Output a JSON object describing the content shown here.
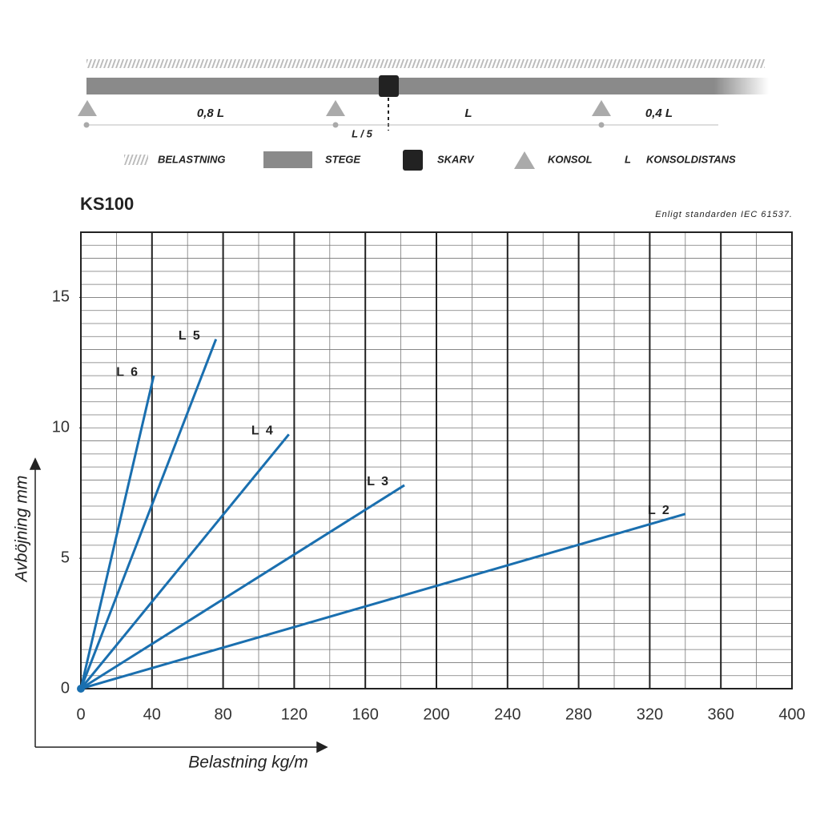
{
  "diagram": {
    "spans": [
      "0,8 L",
      "L",
      "0,4 L"
    ],
    "joint_label": "L / 5",
    "legend": [
      "BELASTNING",
      "STEGE",
      "SKARV",
      "KONSOL",
      "L",
      "KONSOLDISTANS"
    ]
  },
  "chart_data": {
    "type": "line",
    "title": "KS100",
    "subtitle": "Enligt standarden IEC 61537.",
    "x_label": "Belastning kg/m",
    "y_label": "Avböjning mm",
    "xlim": [
      0,
      400
    ],
    "xticks": [
      0,
      40,
      80,
      120,
      160,
      200,
      240,
      280,
      320,
      360,
      400
    ],
    "ylim": [
      0,
      17.5
    ],
    "yticks": [
      0,
      5,
      10,
      15
    ],
    "grid": true,
    "series": [
      {
        "name": "L 6",
        "color": "#1a6faf",
        "x": [
          0,
          41
        ],
        "values": [
          0,
          12
        ]
      },
      {
        "name": "L 5",
        "color": "#1a6faf",
        "x": [
          0,
          76
        ],
        "values": [
          0,
          13.4
        ]
      },
      {
        "name": "L 4",
        "color": "#1a6faf",
        "x": [
          0,
          117
        ],
        "values": [
          0,
          9.75
        ]
      },
      {
        "name": "L 3",
        "color": "#1a6faf",
        "x": [
          0,
          182
        ],
        "values": [
          0,
          7.8
        ]
      },
      {
        "name": "L 2",
        "color": "#1a6faf",
        "x": [
          0,
          340
        ],
        "values": [
          0,
          6.7
        ]
      }
    ]
  }
}
